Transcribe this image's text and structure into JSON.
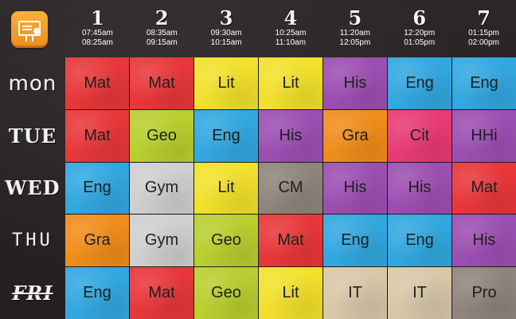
{
  "header": {
    "app_icon": "classroom-board-icon",
    "periods": [
      {
        "number": "1",
        "start": "07:45am",
        "end": "08:25am"
      },
      {
        "number": "2",
        "start": "08:35am",
        "end": "09:15am"
      },
      {
        "number": "3",
        "start": "09:30am",
        "end": "10:15am"
      },
      {
        "number": "4",
        "start": "10:25am",
        "end": "11:10am"
      },
      {
        "number": "5",
        "start": "11:20am",
        "end": "12:05pm"
      },
      {
        "number": "6",
        "start": "12:20pm",
        "end": "01:05pm"
      },
      {
        "number": "7",
        "start": "01:15pm",
        "end": "02:00pm"
      }
    ]
  },
  "days": [
    "mon",
    "TUE",
    "WED",
    "THU",
    "FRI"
  ],
  "colors": {
    "red": "#e8373a",
    "yellow": "#f2e12b",
    "purple": "#9c4fb2",
    "blue": "#32a8e0",
    "lime": "#b8cf2e",
    "orange": "#f08d1a",
    "pink": "#e83a74",
    "gray": "#cfcfcf",
    "taupe": "#8f857c",
    "beige": "#d8c8a8"
  },
  "schedule": [
    [
      {
        "subject": "Mat",
        "color": "red"
      },
      {
        "subject": "Mat",
        "color": "red"
      },
      {
        "subject": "Lit",
        "color": "yellow"
      },
      {
        "subject": "Lit",
        "color": "yellow"
      },
      {
        "subject": "His",
        "color": "purple"
      },
      {
        "subject": "Eng",
        "color": "blue"
      },
      {
        "subject": "Eng",
        "color": "blue"
      }
    ],
    [
      {
        "subject": "Mat",
        "color": "red"
      },
      {
        "subject": "Geo",
        "color": "lime"
      },
      {
        "subject": "Eng",
        "color": "blue"
      },
      {
        "subject": "His",
        "color": "purple"
      },
      {
        "subject": "Gra",
        "color": "orange"
      },
      {
        "subject": "Cit",
        "color": "pink"
      },
      {
        "subject": "HHi",
        "color": "purple"
      }
    ],
    [
      {
        "subject": "Eng",
        "color": "blue"
      },
      {
        "subject": "Gym",
        "color": "gray"
      },
      {
        "subject": "Lit",
        "color": "yellow"
      },
      {
        "subject": "CM",
        "color": "taupe"
      },
      {
        "subject": "His",
        "color": "purple"
      },
      {
        "subject": "His",
        "color": "purple"
      },
      {
        "subject": "Mat",
        "color": "red"
      }
    ],
    [
      {
        "subject": "Gra",
        "color": "orange"
      },
      {
        "subject": "Gym",
        "color": "gray"
      },
      {
        "subject": "Geo",
        "color": "lime"
      },
      {
        "subject": "Mat",
        "color": "red"
      },
      {
        "subject": "Eng",
        "color": "blue"
      },
      {
        "subject": "Eng",
        "color": "blue"
      },
      {
        "subject": "His",
        "color": "purple"
      }
    ],
    [
      {
        "subject": "Eng",
        "color": "blue"
      },
      {
        "subject": "Mat",
        "color": "red"
      },
      {
        "subject": "Geo",
        "color": "lime"
      },
      {
        "subject": "Lit",
        "color": "yellow"
      },
      {
        "subject": "IT",
        "color": "beige"
      },
      {
        "subject": "IT",
        "color": "beige"
      },
      {
        "subject": "Pro",
        "color": "taupe"
      }
    ]
  ]
}
